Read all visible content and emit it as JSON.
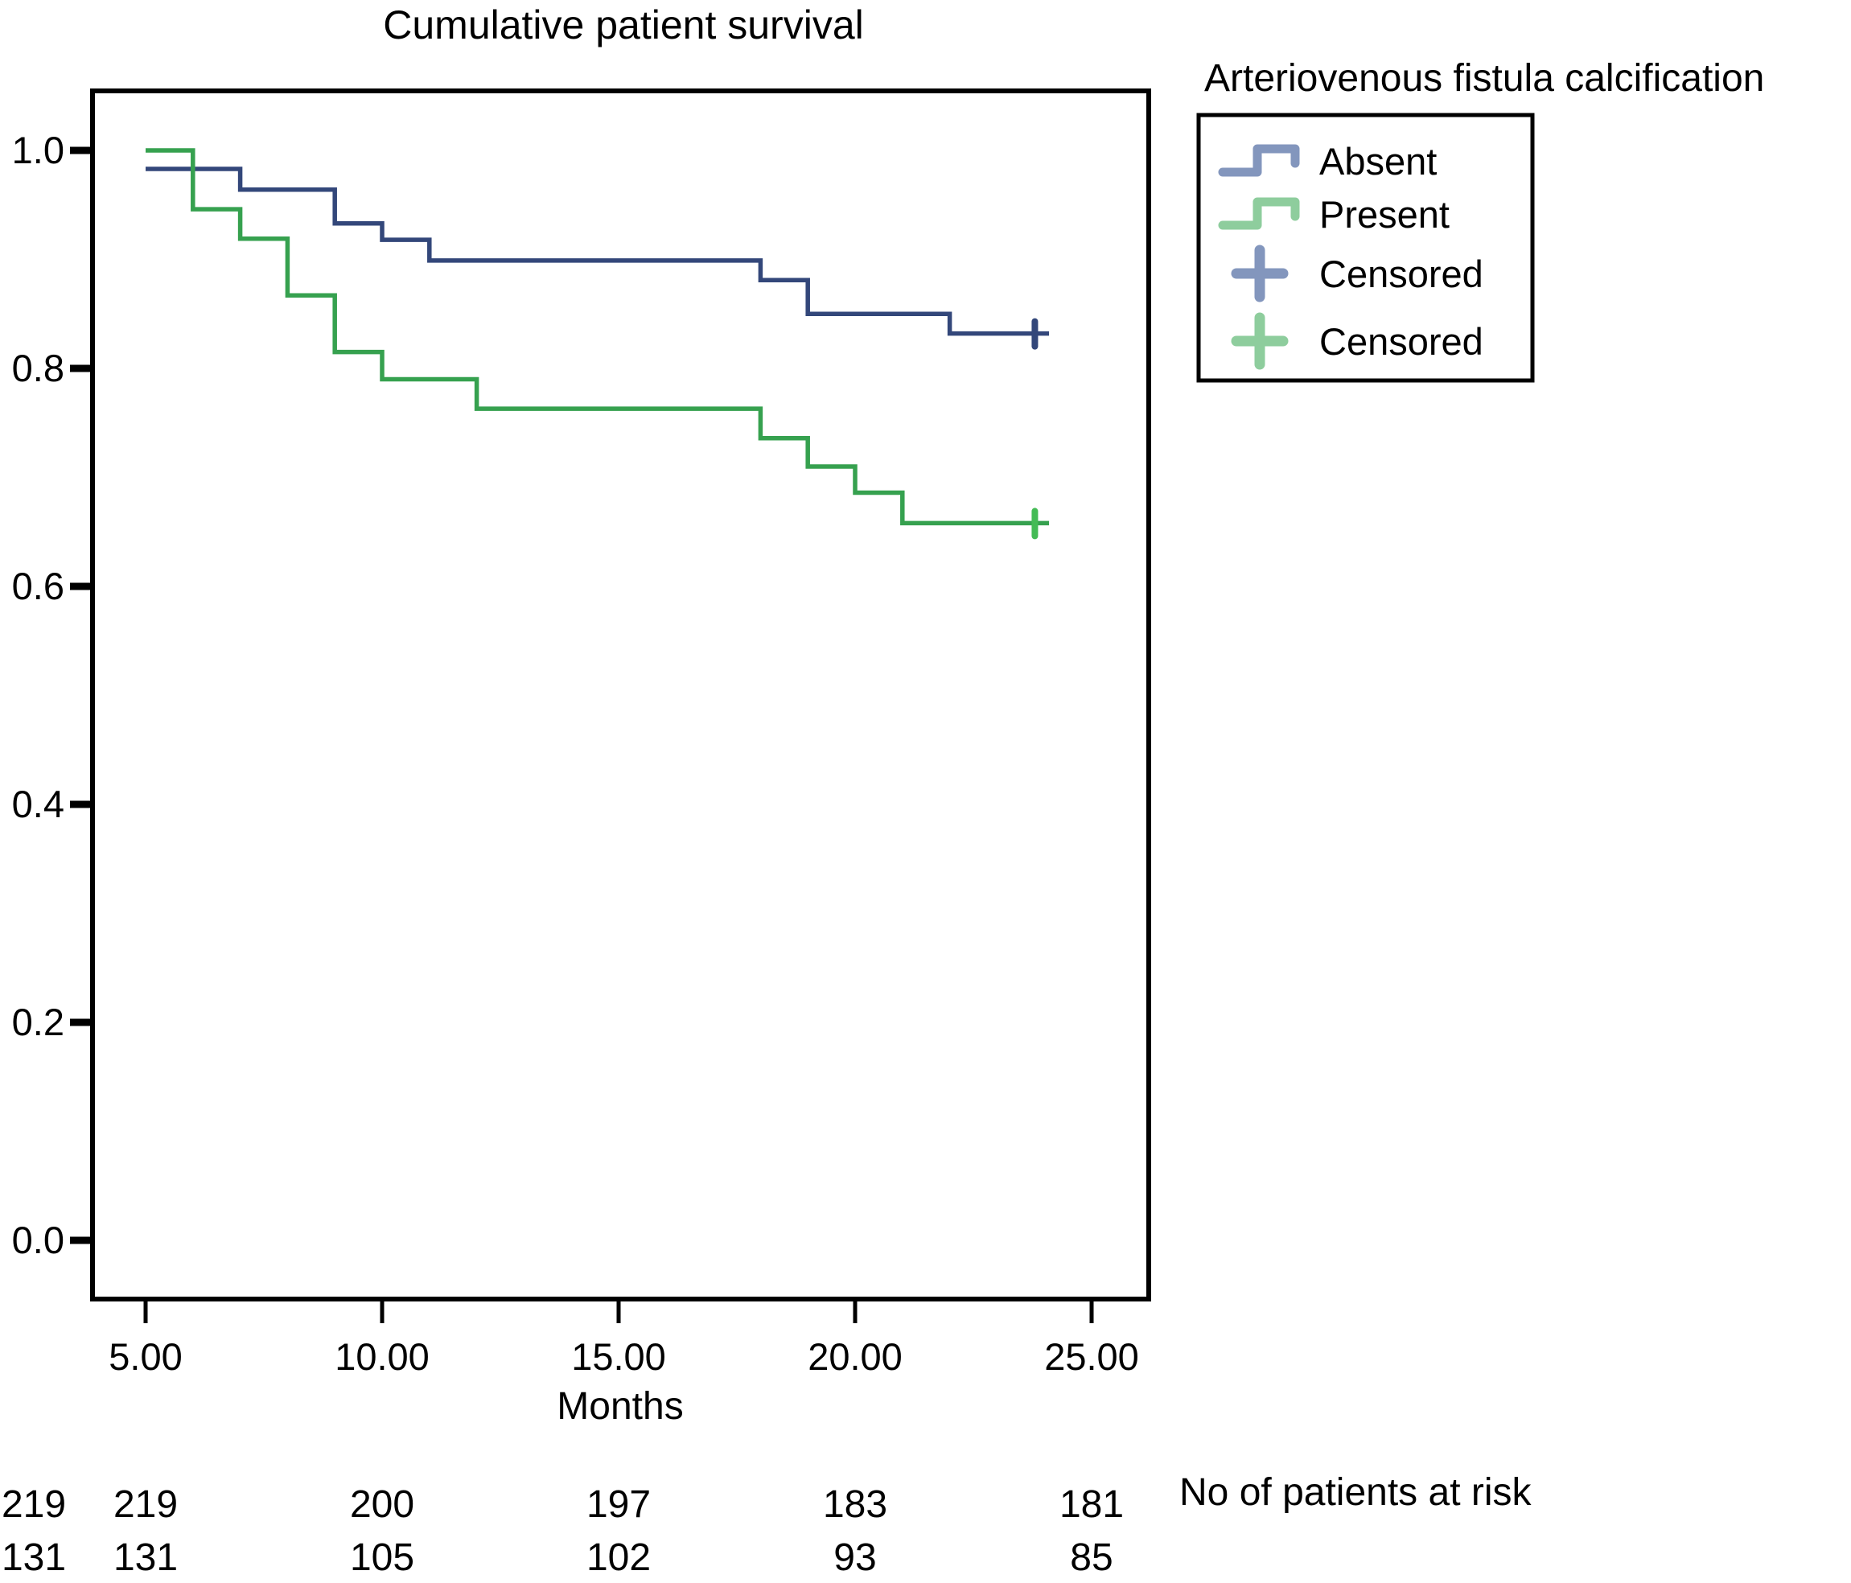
{
  "chart_data": {
    "type": "line",
    "subtype": "kaplan-meier-step",
    "title": "Cumulative patient survival",
    "xlabel": "Months",
    "ylabel": "",
    "xlim": [
      3.9,
      26.2
    ],
    "ylim": [
      -0.05,
      1.05
    ],
    "grid": false,
    "x_ticks": [
      {
        "value": 5,
        "label": "5.00"
      },
      {
        "value": 10,
        "label": "10.00"
      },
      {
        "value": 15,
        "label": "15.00"
      },
      {
        "value": 20,
        "label": "20.00"
      },
      {
        "value": 25,
        "label": "25.00"
      }
    ],
    "y_ticks": [
      {
        "value": 0.0,
        "label": "0.0"
      },
      {
        "value": 0.2,
        "label": "0.2"
      },
      {
        "value": 0.4,
        "label": "0.4"
      },
      {
        "value": 0.6,
        "label": "0.6"
      },
      {
        "value": 0.8,
        "label": "0.8"
      },
      {
        "value": 1.0,
        "label": "1.0"
      }
    ],
    "series": [
      {
        "name": "Absent",
        "color": "#33477A",
        "censor_color": "#33477A",
        "steps": [
          [
            5,
            0.983
          ],
          [
            7,
            0.964
          ],
          [
            9,
            0.933
          ],
          [
            10,
            0.918
          ],
          [
            11,
            0.899
          ],
          [
            18,
            0.881
          ],
          [
            19,
            0.85
          ],
          [
            22,
            0.832
          ]
        ],
        "line_end": 24.1,
        "censored_at": [
          23.8
        ]
      },
      {
        "name": "Present",
        "color": "#36A14F",
        "censor_color": "#44BB55",
        "steps": [
          [
            5,
            1.0
          ],
          [
            6,
            0.946
          ],
          [
            7,
            0.919
          ],
          [
            8,
            0.867
          ],
          [
            9,
            0.815
          ],
          [
            10,
            0.79
          ],
          [
            12,
            0.763
          ],
          [
            18,
            0.736
          ],
          [
            19,
            0.71
          ],
          [
            20,
            0.686
          ],
          [
            21,
            0.658
          ]
        ],
        "line_end": 24.1,
        "censored_at": [
          23.8
        ]
      }
    ]
  },
  "legend": {
    "title": "Arteriovenous fistula calcification",
    "items": [
      {
        "label": "Absent",
        "symbol": "step",
        "color": "#8396BD"
      },
      {
        "label": "Present",
        "symbol": "step",
        "color": "#8ECD9D"
      },
      {
        "label": "Censored",
        "symbol": "plus",
        "color": "#8396BD"
      },
      {
        "label": "Censored",
        "symbol": "plus",
        "color": "#8ECD9D"
      }
    ]
  },
  "at_risk": {
    "label": "No of patients at risk",
    "rows": [
      {
        "group": "Absent",
        "counts": [
          "219",
          "219",
          "200",
          "197",
          "183",
          "181"
        ]
      },
      {
        "group": "Present",
        "counts": [
          "131",
          "131",
          "105",
          "102",
          "93",
          "85"
        ]
      }
    ]
  }
}
